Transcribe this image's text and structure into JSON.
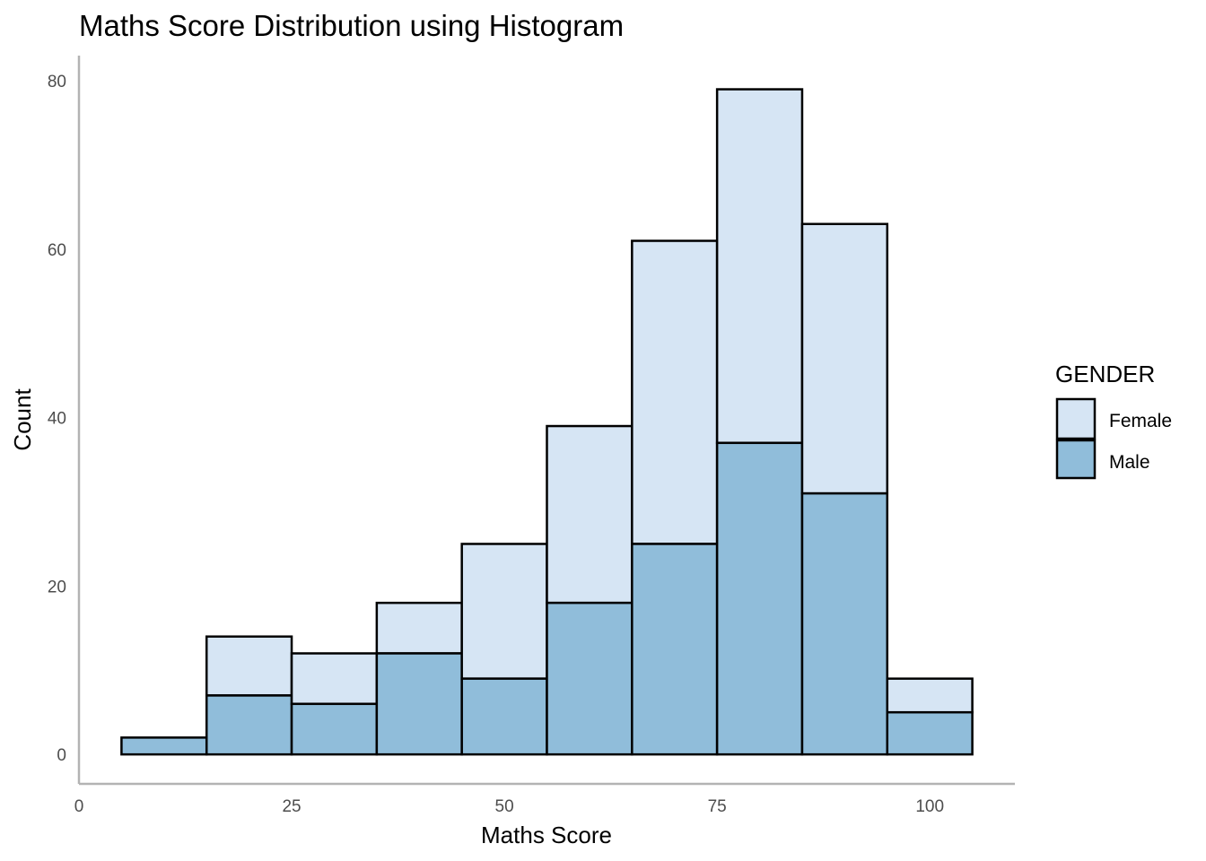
{
  "chart_data": {
    "type": "bar",
    "stacked": true,
    "title": "Maths Score Distribution using Histogram",
    "xlabel": "Maths Score",
    "ylabel": "Count",
    "x_bins": [
      [
        5,
        15
      ],
      [
        15,
        25
      ],
      [
        25,
        35
      ],
      [
        35,
        45
      ],
      [
        45,
        55
      ],
      [
        55,
        65
      ],
      [
        65,
        75
      ],
      [
        75,
        85
      ],
      [
        85,
        95
      ],
      [
        95,
        105
      ]
    ],
    "series": [
      {
        "name": "Male",
        "values": [
          2,
          7,
          6,
          12,
          9,
          18,
          25,
          37,
          31,
          5
        ]
      },
      {
        "name": "Female",
        "values": [
          0,
          7,
          6,
          6,
          16,
          21,
          36,
          42,
          32,
          4
        ]
      }
    ],
    "xlim": [
      0,
      110
    ],
    "ylim": [
      -3.5,
      83
    ],
    "xticks": [
      0,
      25,
      50,
      75,
      100
    ],
    "yticks": [
      0,
      20,
      40,
      60,
      80
    ],
    "grid": false,
    "legend": {
      "title": "GENDER",
      "placement": "right",
      "entries": [
        {
          "label": "Female"
        },
        {
          "label": "Male"
        }
      ]
    },
    "colors": {
      "Female": "#d6e5f4",
      "Male": "#90bdda",
      "outline": "#000000",
      "axis": "#b3b3b3"
    }
  }
}
